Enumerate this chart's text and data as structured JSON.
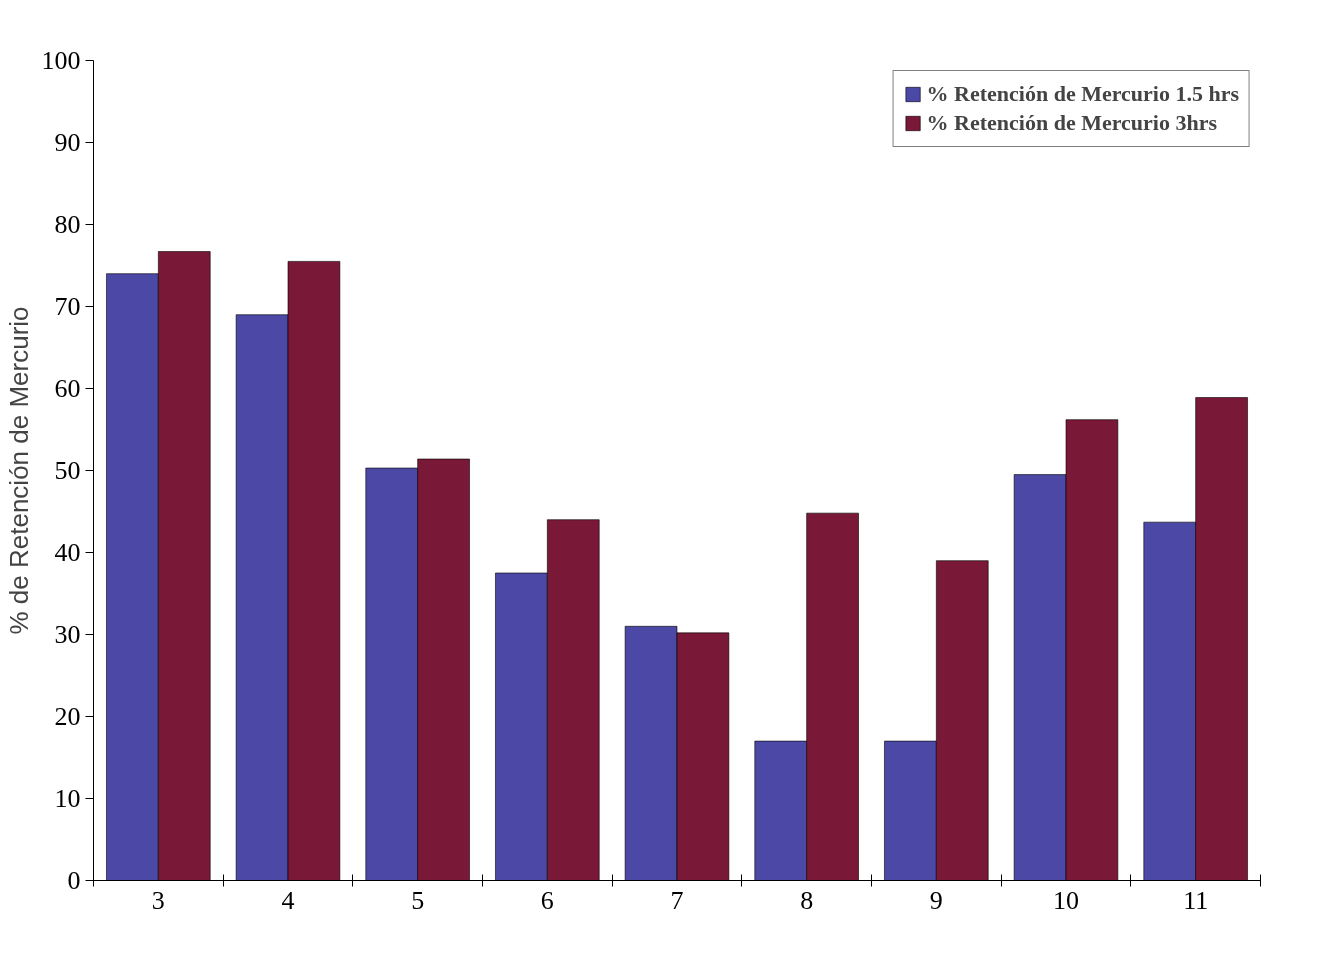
{
  "chart_data": {
    "type": "bar",
    "ylabel": "% de Retención de Mercurio",
    "categories": [
      "3",
      "4",
      "5",
      "6",
      "7",
      "8",
      "9",
      "10",
      "11"
    ],
    "series": [
      {
        "name": "% Retención de Mercurio 1.5 hrs",
        "color": "#4b48a6",
        "values": [
          74,
          69,
          50.3,
          37.5,
          31,
          17,
          17,
          49.5,
          43.7
        ]
      },
      {
        "name": "% Retención de Mercurio 3hrs",
        "color": "#7a1838",
        "values": [
          76.7,
          75.5,
          51.4,
          44,
          30.2,
          44.8,
          39,
          56.2,
          58.9
        ]
      }
    ],
    "ylim": [
      0,
      100
    ],
    "yticks": [
      0,
      10,
      20,
      30,
      40,
      50,
      60,
      70,
      80,
      90,
      100
    ],
    "grid": false,
    "legend": "top right"
  }
}
